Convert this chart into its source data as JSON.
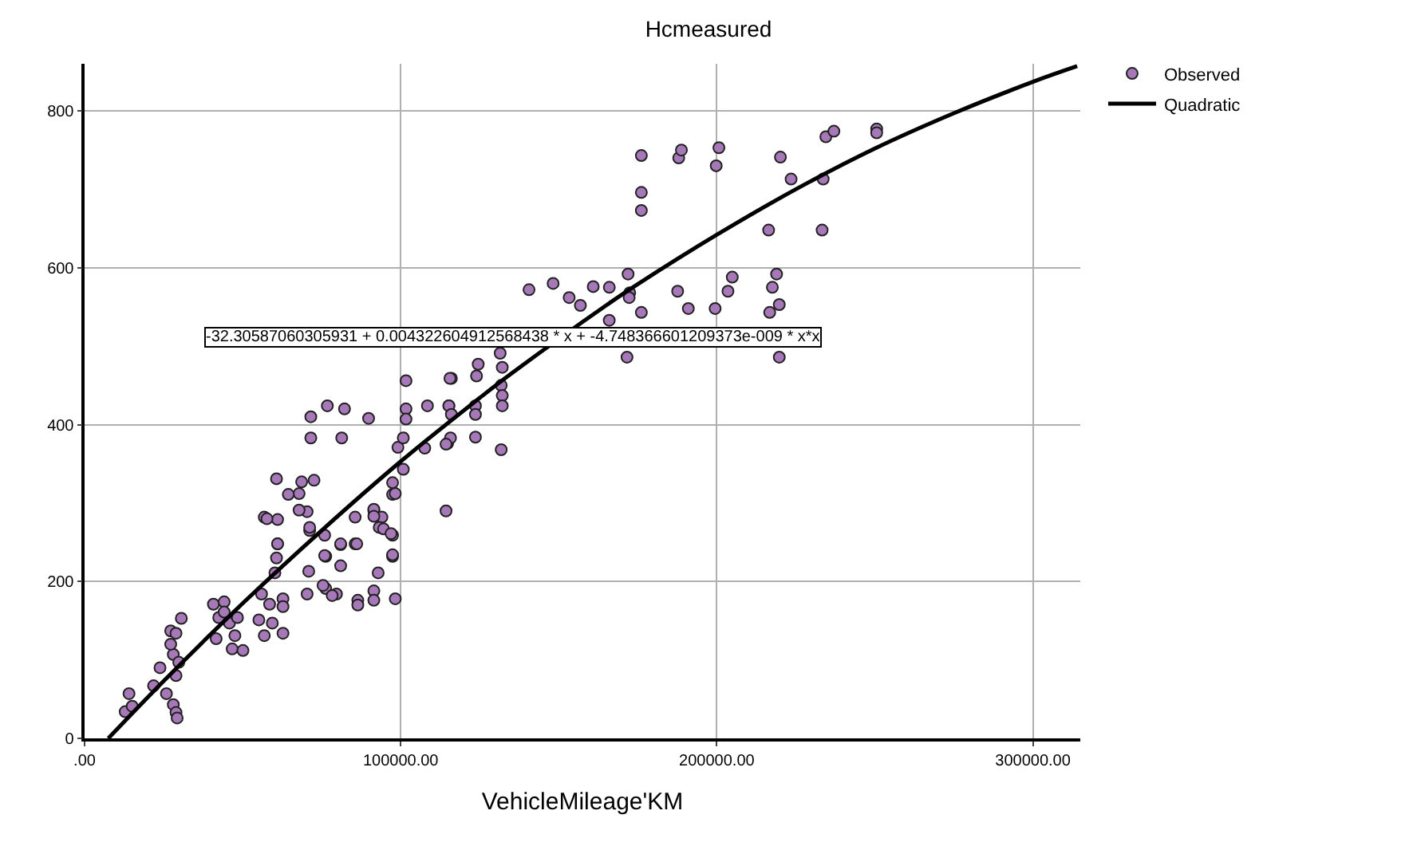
{
  "chart_data": {
    "type": "scatter",
    "title": "Hcmeasured",
    "xlabel": "VehicleMileage'KM",
    "xlim": [
      0,
      315000
    ],
    "ylim": [
      0,
      860
    ],
    "xticks": [
      {
        "value": 0,
        "label": ".00"
      },
      {
        "value": 100000,
        "label": "100000.00"
      },
      {
        "value": 200000,
        "label": "200000.00"
      },
      {
        "value": 300000,
        "label": "300000.00"
      }
    ],
    "yticks": [
      0,
      200,
      400,
      600,
      800
    ],
    "grid": true,
    "legend": "top right",
    "marker": "circle",
    "annotations": [
      "-32.30587060305931 + 0.004322604912568438 * x + -4.748366601209373e-009 * x*x"
    ],
    "series": [
      {
        "name": "Observed",
        "color": "#a678b8",
        "x": [
          12840,
          14060,
          15070,
          21830,
          25890,
          28070,
          28930,
          29290,
          27250,
          28930,
          28070,
          29800,
          23860,
          30610,
          27250,
          28930,
          40760,
          44160,
          42450,
          45830,
          47560,
          41620,
          46690,
          50100,
          44160,
          48370,
          56850,
          61060,
          61060,
          60720,
          70400,
          67860,
          71210,
          76290,
          55990,
          58530,
          62770,
          62770,
          55140,
          59390,
          62770,
          56850,
          70400,
          76290,
          79690,
          81010,
          101690,
          116040,
          71570,
          76800,
          82230,
          89850,
          101690,
          101690,
          108470,
          115250,
          71570,
          81350,
          99130,
          100830,
          107620,
          114860,
          100830,
          60720,
          68670,
          72590,
          64460,
          67860,
          57700,
          97440,
          97440,
          91510,
          85590,
          94060,
          93220,
          97440,
          114350,
          61060,
          71210,
          75950,
          75950,
          81010,
          85590,
          81010,
          92880,
          97440,
          60210,
          70910,
          75440,
          78330,
          86440,
          91510,
          91510,
          98290,
          86440,
          115590,
          124000,
          124520,
          132140,
          131800,
          132140,
          132140,
          123660,
          123660,
          115250,
          116040,
          123660,
          115760,
          114350,
          131800,
          98290,
          91510,
          91510,
          94570,
          96950,
          86100,
          97440,
          176140,
          187960,
          188810,
          199820,
          200670,
          220130,
          223510,
          233660,
          234510,
          237050,
          250580,
          250580,
          176140,
          176140,
          216400,
          233320,
          166000,
          171940,
          172450,
          172280,
          176140,
          187620,
          191000,
          199480,
          203540,
          204900,
          217580,
          218920,
          219770,
          216740,
          182890,
          171600,
          219770,
          140600,
          148220,
          153300,
          156850,
          160910,
          150760,
          138070,
          131470,
          165980
        ],
        "values": [
          34,
          57,
          41,
          67,
          57,
          43,
          33,
          26,
          137,
          134,
          107,
          97,
          90,
          153,
          120,
          80,
          171,
          174,
          154,
          147,
          131,
          127,
          114,
          112,
          161,
          154,
          282,
          279,
          248,
          230,
          289,
          312,
          265,
          232,
          184,
          171,
          178,
          168,
          151,
          147,
          134,
          131,
          184,
          191,
          184,
          247,
          456,
          459,
          410,
          424,
          420,
          408,
          420,
          407,
          424,
          424,
          383,
          383,
          371,
          383,
          370,
          376,
          343,
          331,
          327,
          329,
          311,
          291,
          280,
          326,
          311,
          290,
          282,
          282,
          269,
          259,
          290,
          248,
          269,
          259,
          233,
          248,
          248,
          220,
          211,
          232,
          211,
          213,
          195,
          182,
          176,
          188,
          176,
          178,
          170,
          459,
          462,
          477,
          473,
          450,
          437,
          424,
          424,
          413,
          424,
          413,
          384,
          383,
          375,
          368,
          312,
          292,
          283,
          267,
          261,
          248,
          234,
          743,
          740,
          750,
          730,
          753,
          741,
          713,
          713,
          767,
          774,
          777,
          772,
          696,
          673,
          648,
          648,
          575,
          592,
          568,
          562,
          543,
          570,
          548,
          548,
          570,
          588,
          575,
          592,
          553,
          543,
          null,
          486,
          486,
          572,
          580,
          562,
          552,
          576,
          null,
          null,
          491,
          533
        ]
      },
      {
        "name": "Quadratic",
        "type": "line",
        "color": "#000000",
        "marker": "none",
        "line_style": "solid",
        "x": [
          7500,
          25000,
          50000,
          75000,
          100000,
          125000,
          135000,
          165000,
          175000,
          200000,
          225000,
          250000,
          275000,
          300000,
          314000
        ],
        "values": [
          0,
          73,
          172,
          265,
          353,
          434,
          465,
          552,
          579,
          642,
          700,
          752,
          797,
          837,
          857
        ]
      }
    ]
  }
}
